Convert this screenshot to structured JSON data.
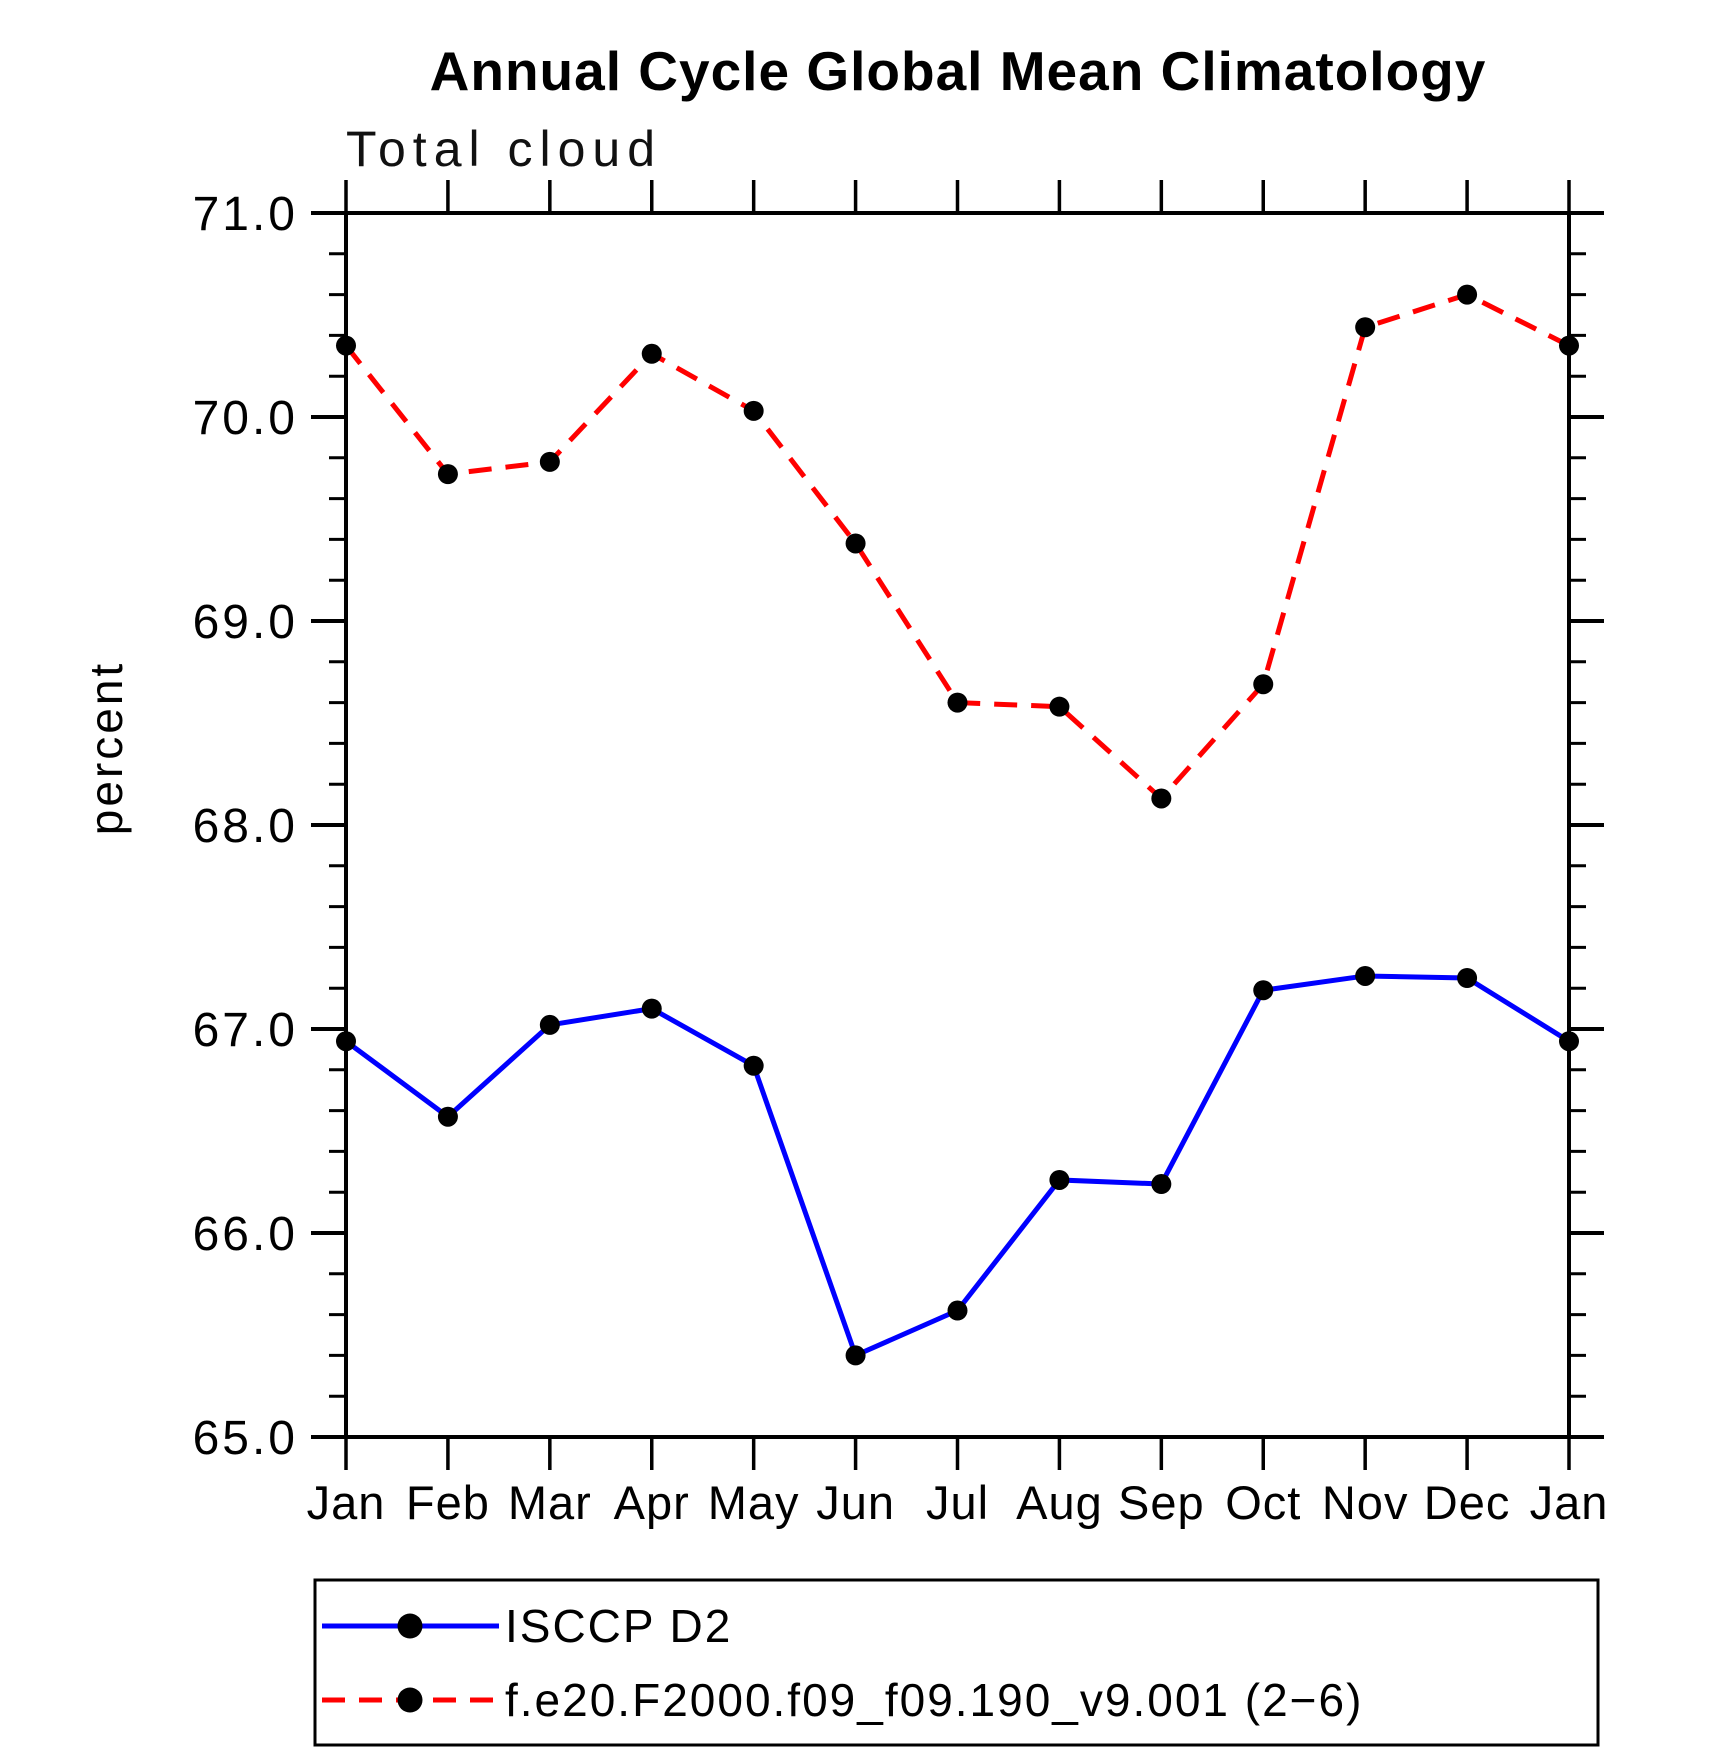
{
  "page": {
    "background": "#ffffff",
    "axis_color": "#000000",
    "text_color": "#000000"
  },
  "chart_data": {
    "type": "line",
    "title": "Annual Cycle Global Mean Climatology",
    "subtitle": "Total cloud",
    "xlabel": "",
    "ylabel": "percent",
    "categories": [
      "Jan",
      "Feb",
      "Mar",
      "Apr",
      "May",
      "Jun",
      "Jul",
      "Aug",
      "Sep",
      "Oct",
      "Nov",
      "Dec",
      "Jan"
    ],
    "ylim": [
      65.0,
      71.0
    ],
    "ytick_major": 1.0,
    "ytick_minor": 0.2,
    "ytick_labels": [
      "65.0",
      "66.0",
      "67.0",
      "68.0",
      "69.0",
      "70.0",
      "71.0"
    ],
    "grid": false,
    "legend_position": "bottom",
    "series": [
      {
        "name": "ISCCP D2",
        "color": "#0000ff",
        "line_style": "solid",
        "marker": "filled-circle",
        "marker_color": "#000000",
        "values": [
          66.94,
          66.57,
          67.02,
          67.1,
          66.82,
          65.4,
          65.62,
          66.26,
          66.24,
          67.19,
          67.26,
          67.25,
          66.94
        ]
      },
      {
        "name": "f.e20.F2000.f09_f09.190_v9.001 (2−6)",
        "color": "#ff0000",
        "line_style": "dashed",
        "marker": "filled-circle",
        "marker_color": "#000000",
        "values": [
          70.35,
          69.72,
          69.78,
          70.31,
          70.03,
          69.38,
          68.6,
          68.58,
          68.13,
          68.69,
          70.44,
          70.6,
          70.35
        ]
      }
    ]
  }
}
